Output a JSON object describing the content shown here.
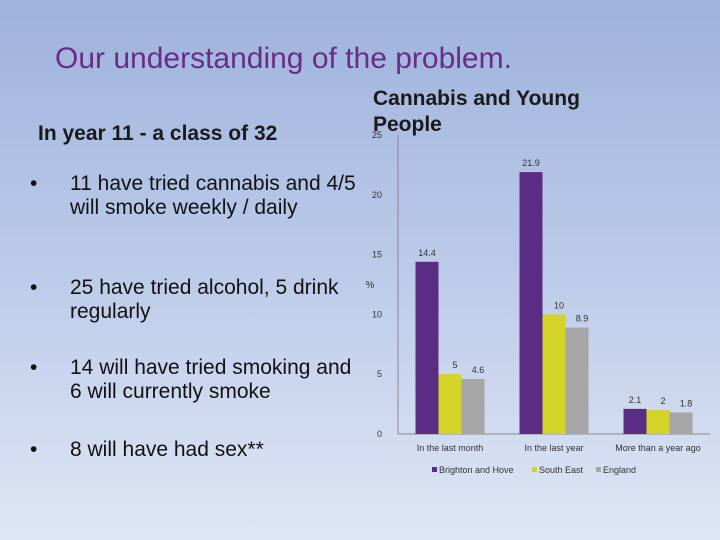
{
  "slide": {
    "title": "Our understanding of the problem.",
    "class_label": "In year 11  -  a class of 32",
    "bullets": [
      {
        "marker": "•",
        "text": "11 have tried cannabis and 4/5  will smoke weekly / daily"
      },
      {
        "marker": "•",
        "text": "25 have tried alcohol, 5 drink regularly"
      },
      {
        "marker": "•",
        "text": "14 will have tried smoking and 6 will currently smoke"
      },
      {
        "marker": "•",
        "text": "8 will have had sex**"
      }
    ]
  },
  "chart_data": {
    "type": "bar",
    "title": "Cannabis and Young People",
    "ylabel": "%",
    "xlabel": "",
    "ylim": [
      0,
      25
    ],
    "yticks": [
      0,
      5,
      10,
      15,
      20,
      25
    ],
    "categories": [
      "In the last month",
      "In the last year",
      "More than a year ago"
    ],
    "series": [
      {
        "name": "Brighton and Hove",
        "color": "#5b2c83",
        "values": [
          14.4,
          21.9,
          2.1
        ]
      },
      {
        "name": "South East",
        "color": "#d4d32a",
        "values": [
          5,
          10,
          2
        ]
      },
      {
        "name": "England",
        "color": "#a6a6a6",
        "values": [
          4.6,
          8.9,
          1.8
        ]
      }
    ],
    "data_labels": [
      [
        "14.4",
        "21.9",
        "2.1"
      ],
      [
        "5",
        "10",
        "2"
      ],
      [
        "4.6",
        "8.9",
        "1.8"
      ]
    ],
    "grid": false,
    "legend_position": "bottom"
  }
}
